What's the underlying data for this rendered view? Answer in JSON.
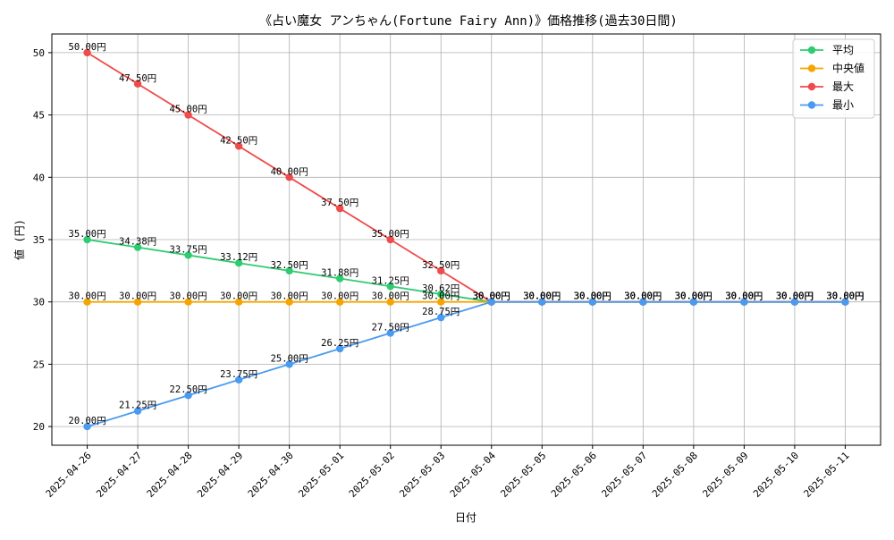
{
  "chart_data": {
    "type": "line",
    "title": "《占い魔女 アンちゃん(Fortune Fairy Ann)》価格推移(過去30日間)",
    "xlabel": "日付",
    "ylabel": "値 (円)",
    "ylim": [
      18.5,
      51.5
    ],
    "yticks": [
      20,
      25,
      30,
      35,
      40,
      45,
      50
    ],
    "grid": true,
    "legend_position": "top-right",
    "categories": [
      "2025-04-26",
      "2025-04-27",
      "2025-04-28",
      "2025-04-29",
      "2025-04-30",
      "2025-05-01",
      "2025-05-02",
      "2025-05-03",
      "2025-05-04",
      "2025-05-05",
      "2025-05-06",
      "2025-05-07",
      "2025-05-08",
      "2025-05-09",
      "2025-05-10",
      "2025-05-11"
    ],
    "series": [
      {
        "name": "平均",
        "color": "#2ecc71",
        "values": [
          35.0,
          34.38,
          33.75,
          33.12,
          32.5,
          31.88,
          31.25,
          30.62,
          30.0,
          30.0,
          30.0,
          30.0,
          30.0,
          30.0,
          30.0,
          30.0
        ],
        "labels": [
          "35.00円",
          "34.38円",
          "33.75円",
          "33.12円",
          "32.50円",
          "31.88円",
          "31.25円",
          "30.62円",
          "30.00円",
          "30.00円",
          "30.00円",
          "30.00円",
          "30.00円",
          "30.00円",
          "30.00円",
          "30.00円"
        ]
      },
      {
        "name": "中央値",
        "color": "#f5a500",
        "values": [
          30.0,
          30.0,
          30.0,
          30.0,
          30.0,
          30.0,
          30.0,
          30.0,
          30.0,
          30.0,
          30.0,
          30.0,
          30.0,
          30.0,
          30.0,
          30.0
        ],
        "labels": [
          "30.00円",
          "30.00円",
          "30.00円",
          "30.00円",
          "30.00円",
          "30.00円",
          "30.00円",
          "30.00円",
          "30.00円",
          "30.00円",
          "30.00円",
          "30.00円",
          "30.00円",
          "30.00円",
          "30.00円",
          "30.00円"
        ]
      },
      {
        "name": "最大",
        "color": "#f04a4a",
        "values": [
          50.0,
          47.5,
          45.0,
          42.5,
          40.0,
          37.5,
          35.0,
          32.5,
          30.0,
          30.0,
          30.0,
          30.0,
          30.0,
          30.0,
          30.0,
          30.0
        ],
        "labels": [
          "50.00円",
          "47.50円",
          "45.00円",
          "42.50円",
          "40.00円",
          "37.50円",
          "35.00円",
          "32.50円",
          "30.00円",
          "30.00円",
          "30.00円",
          "30.00円",
          "30.00円",
          "30.00円",
          "30.00円",
          "30.00円"
        ]
      },
      {
        "name": "最小",
        "color": "#4a9af0",
        "values": [
          20.0,
          21.25,
          22.5,
          23.75,
          25.0,
          26.25,
          27.5,
          28.75,
          30.0,
          30.0,
          30.0,
          30.0,
          30.0,
          30.0,
          30.0,
          30.0
        ],
        "labels": [
          "20.00円",
          "21.25円",
          "22.50円",
          "23.75円",
          "25.00円",
          "26.25円",
          "27.50円",
          "28.75円",
          "30.00円",
          "30.00円",
          "30.00円",
          "30.00円",
          "30.00円",
          "30.00円",
          "30.00円",
          "30.00円"
        ]
      }
    ]
  }
}
